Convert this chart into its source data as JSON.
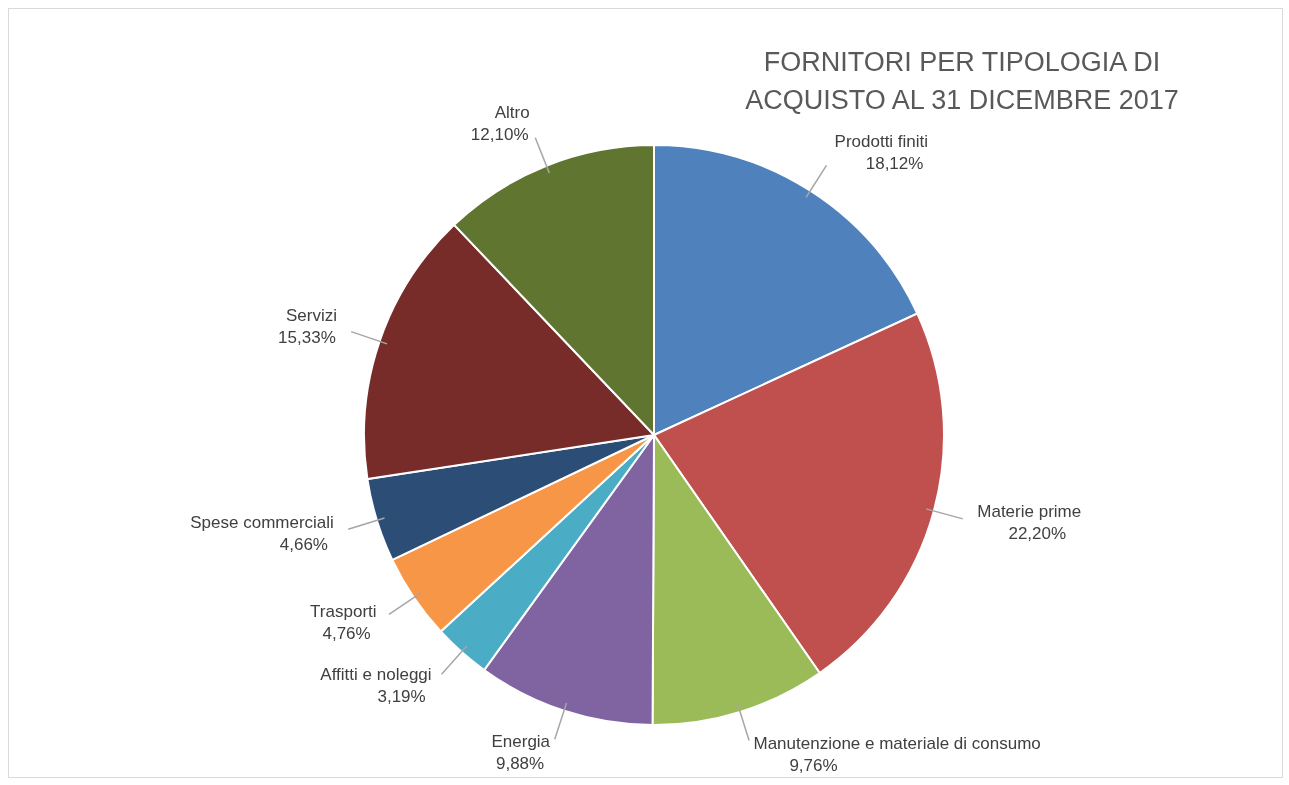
{
  "chart_data": {
    "type": "pie",
    "title": "FORNITORI PER TIPOLOGIA DI ACQUISTO AL 31 DICEMBRE 2017",
    "categories": [
      "Prodotti finiti",
      "Materie prime",
      "Manutenzione e materiale di consumo",
      "Energia",
      "Affitti e noleggi",
      "Trasporti",
      "Spese commerciali",
      "Servizi",
      "Altro"
    ],
    "values": [
      18.12,
      22.2,
      9.76,
      9.88,
      3.19,
      4.76,
      4.66,
      15.33,
      12.1
    ],
    "value_labels": [
      "18,12%",
      "22,20%",
      "9,76%",
      "9,88%",
      "3,19%",
      "4,76%",
      "4,66%",
      "15,33%",
      "12,10%"
    ],
    "colors": [
      "#4f81bd",
      "#c0504d",
      "#9bbb59",
      "#8064a2",
      "#4bacc6",
      "#f79646",
      "#2c4d75",
      "#772c2a",
      "#5f7530"
    ],
    "legend": false
  }
}
